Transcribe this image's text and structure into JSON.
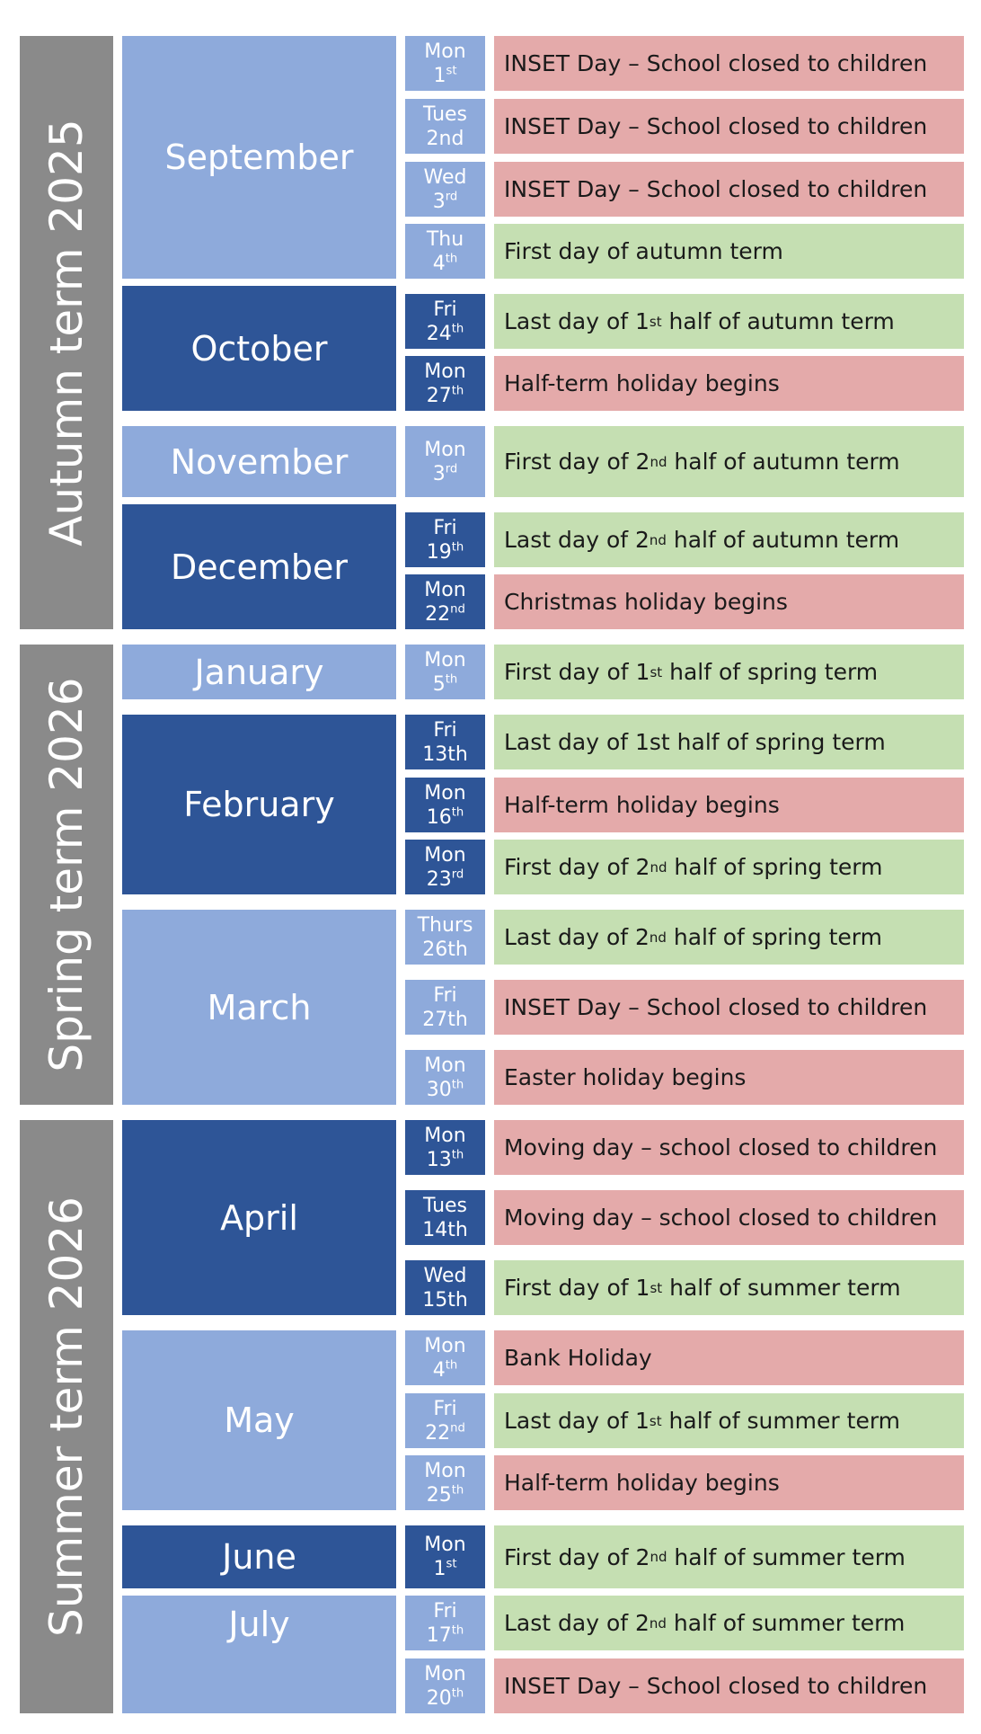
{
  "terms": [
    {
      "label": "Autumn term 2025"
    },
    {
      "label": "Spring term 2026"
    },
    {
      "label": "Summer term 2026"
    }
  ],
  "months": [
    {
      "name": "September"
    },
    {
      "name": "October"
    },
    {
      "name": "November"
    },
    {
      "name": "December"
    },
    {
      "name": "January"
    },
    {
      "name": "February"
    },
    {
      "name": "March"
    },
    {
      "name": "April"
    },
    {
      "name": "May"
    },
    {
      "name": "June"
    },
    {
      "name": "July"
    }
  ],
  "entries": [
    {
      "weekday": "Mon",
      "date": "1",
      "suffix": "st",
      "event": "INSET Day – School closed to children",
      "type": "closed"
    },
    {
      "weekday": "Tues",
      "date": "2nd",
      "suffix": "",
      "event": "INSET Day – School closed to children",
      "type": "closed"
    },
    {
      "weekday": "Wed",
      "date": "3",
      "suffix": "rd",
      "event": "INSET Day – School closed to children",
      "type": "closed"
    },
    {
      "weekday": "Thu",
      "date": "4",
      "suffix": "th",
      "event": "First day of autumn term",
      "type": "open"
    },
    {
      "weekday": "Fri",
      "date": "24",
      "suffix": "th",
      "event_pre": "Last day of 1",
      "event_sup": "st",
      "event_post": " half of autumn term",
      "type": "open"
    },
    {
      "weekday": "Mon",
      "date": "27",
      "suffix": "th",
      "event": "Half-term holiday begins",
      "type": "closed"
    },
    {
      "weekday": "Mon",
      "date": "3",
      "suffix": "rd",
      "event_pre": "First day of 2",
      "event_sup": "nd",
      "event_post": " half of autumn term",
      "type": "open"
    },
    {
      "weekday": "Fri",
      "date": "19",
      "suffix": "th",
      "event_pre": "Last day of 2",
      "event_sup": "nd",
      "event_post": " half of autumn term",
      "type": "open"
    },
    {
      "weekday": "Mon",
      "date": "22",
      "suffix": "nd",
      "event": "Christmas holiday begins",
      "type": "closed"
    },
    {
      "weekday": "Mon",
      "date": "5",
      "suffix": "th",
      "event_pre": "First day of 1",
      "event_sup": "st",
      "event_post": " half of spring term",
      "type": "open"
    },
    {
      "weekday": "Fri",
      "date": "13th",
      "suffix": "",
      "event": "Last day of 1st half of spring term",
      "type": "open"
    },
    {
      "weekday": "Mon",
      "date": "16",
      "suffix": "th",
      "event": "Half-term holiday begins",
      "type": "closed"
    },
    {
      "weekday": "Mon",
      "date": "23",
      "suffix": "rd",
      "event_pre": "First day of 2",
      "event_sup": "nd",
      "event_post": " half of spring term",
      "type": "open"
    },
    {
      "weekday": "Thurs",
      "date": "26th",
      "suffix": "",
      "event_pre": "Last day of 2",
      "event_sup": "nd",
      "event_post": " half of spring term",
      "type": "open"
    },
    {
      "weekday": "Fri",
      "date": "27th",
      "suffix": "",
      "event": "INSET Day – School closed to children",
      "type": "closed"
    },
    {
      "weekday": "Mon",
      "date": "30",
      "suffix": "th",
      "event": "Easter holiday begins",
      "type": "closed"
    },
    {
      "weekday": "Mon",
      "date": "13",
      "suffix": "th",
      "event": "Moving day – school closed to children",
      "type": "closed"
    },
    {
      "weekday": "Tues",
      "date": "14th",
      "suffix": "",
      "event": "Moving day – school closed to children",
      "type": "closed"
    },
    {
      "weekday": "Wed",
      "date": "15th",
      "suffix": "",
      "event_pre": "First day of 1",
      "event_sup": "st",
      "event_post": " half of summer term",
      "type": "open"
    },
    {
      "weekday": "Mon",
      "date": "4",
      "suffix": "th",
      "event": "Bank Holiday",
      "type": "closed"
    },
    {
      "weekday": "Fri",
      "date": "22",
      "suffix": "nd",
      "event_pre": "Last day of 1",
      "event_sup": "st",
      "event_post": " half of summer term",
      "type": "open"
    },
    {
      "weekday": "Mon",
      "date": "25",
      "suffix": "th",
      "event": "Half-term holiday begins",
      "type": "closed"
    },
    {
      "weekday": "Mon",
      "date": "1",
      "suffix": "st",
      "event_pre": "First day of 2",
      "event_sup": "nd",
      "event_post": " half of summer term",
      "type": "open"
    },
    {
      "weekday": "Fri",
      "date": "17",
      "suffix": "th",
      "event_pre": "Last day of 2",
      "event_sup": "nd",
      "event_post": " half of summer term",
      "type": "open"
    },
    {
      "weekday": "Mon",
      "date": "20",
      "suffix": "th",
      "event": "INSET Day – School closed to children",
      "type": "closed"
    }
  ],
  "colors": {
    "term_band": "#8a8a8a",
    "month_light": "#8eaadb",
    "month_dark": "#2e5597",
    "closed": "#e4aaaa",
    "open": "#c5dfb2"
  }
}
